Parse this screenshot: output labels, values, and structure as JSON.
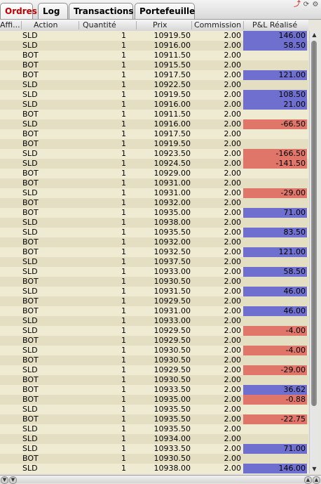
{
  "tabs": [
    {
      "label": "Ordres",
      "active": true
    },
    {
      "label": "Log",
      "active": false
    },
    {
      "label": "Transactions",
      "active": false
    },
    {
      "label": "Portefeuille",
      "active": false
    }
  ],
  "toolbar_icons": [
    "pin-icon",
    "refresh-icon",
    "settings-icon"
  ],
  "columns": {
    "aff": "Affi...",
    "action": "Action",
    "quantite": "Quantité",
    "prix": "Prix",
    "commission": "Commission",
    "pnl": "P&L Réalisé"
  },
  "colors": {
    "pnl_positive": "#6f6fcf",
    "pnl_negative": "#e0766a"
  },
  "rows": [
    {
      "action": "SLD",
      "qty": "1",
      "prix": "10919.50",
      "comm": "2.00",
      "pnl": "146.00"
    },
    {
      "action": "SLD",
      "qty": "1",
      "prix": "10916.00",
      "comm": "2.00",
      "pnl": "58.50"
    },
    {
      "action": "BOT",
      "qty": "1",
      "prix": "10911.50",
      "comm": "2.00",
      "pnl": ""
    },
    {
      "action": "BOT",
      "qty": "1",
      "prix": "10915.50",
      "comm": "2.00",
      "pnl": ""
    },
    {
      "action": "BOT",
      "qty": "1",
      "prix": "10917.50",
      "comm": "2.00",
      "pnl": "121.00"
    },
    {
      "action": "SLD",
      "qty": "1",
      "prix": "10922.50",
      "comm": "2.00",
      "pnl": ""
    },
    {
      "action": "SLD",
      "qty": "1",
      "prix": "10919.50",
      "comm": "2.00",
      "pnl": "108.50"
    },
    {
      "action": "SLD",
      "qty": "1",
      "prix": "10916.00",
      "comm": "2.00",
      "pnl": "21.00"
    },
    {
      "action": "BOT",
      "qty": "1",
      "prix": "10911.50",
      "comm": "2.00",
      "pnl": ""
    },
    {
      "action": "SLD",
      "qty": "1",
      "prix": "10916.00",
      "comm": "2.00",
      "pnl": "-66.50"
    },
    {
      "action": "BOT",
      "qty": "1",
      "prix": "10917.50",
      "comm": "2.00",
      "pnl": ""
    },
    {
      "action": "BOT",
      "qty": "1",
      "prix": "10919.50",
      "comm": "2.00",
      "pnl": ""
    },
    {
      "action": "SLD",
      "qty": "1",
      "prix": "10923.50",
      "comm": "2.00",
      "pnl": "-166.50"
    },
    {
      "action": "SLD",
      "qty": "1",
      "prix": "10924.50",
      "comm": "2.00",
      "pnl": "-141.50"
    },
    {
      "action": "BOT",
      "qty": "1",
      "prix": "10929.00",
      "comm": "2.00",
      "pnl": ""
    },
    {
      "action": "BOT",
      "qty": "1",
      "prix": "10931.00",
      "comm": "2.00",
      "pnl": ""
    },
    {
      "action": "SLD",
      "qty": "1",
      "prix": "10931.00",
      "comm": "2.00",
      "pnl": "-29.00"
    },
    {
      "action": "BOT",
      "qty": "1",
      "prix": "10932.00",
      "comm": "2.00",
      "pnl": ""
    },
    {
      "action": "BOT",
      "qty": "1",
      "prix": "10935.00",
      "comm": "2.00",
      "pnl": "71.00"
    },
    {
      "action": "SLD",
      "qty": "1",
      "prix": "10938.00",
      "comm": "2.00",
      "pnl": ""
    },
    {
      "action": "SLD",
      "qty": "1",
      "prix": "10935.50",
      "comm": "2.00",
      "pnl": "83.50"
    },
    {
      "action": "BOT",
      "qty": "1",
      "prix": "10932.00",
      "comm": "2.00",
      "pnl": ""
    },
    {
      "action": "BOT",
      "qty": "1",
      "prix": "10932.50",
      "comm": "2.00",
      "pnl": "121.00"
    },
    {
      "action": "SLD",
      "qty": "1",
      "prix": "10937.50",
      "comm": "2.00",
      "pnl": ""
    },
    {
      "action": "SLD",
      "qty": "1",
      "prix": "10933.00",
      "comm": "2.00",
      "pnl": "58.50"
    },
    {
      "action": "BOT",
      "qty": "1",
      "prix": "10930.50",
      "comm": "2.00",
      "pnl": ""
    },
    {
      "action": "SLD",
      "qty": "1",
      "prix": "10931.50",
      "comm": "2.00",
      "pnl": "46.00"
    },
    {
      "action": "BOT",
      "qty": "1",
      "prix": "10929.50",
      "comm": "2.00",
      "pnl": ""
    },
    {
      "action": "BOT",
      "qty": "1",
      "prix": "10931.00",
      "comm": "2.00",
      "pnl": "46.00"
    },
    {
      "action": "SLD",
      "qty": "1",
      "prix": "10933.00",
      "comm": "2.00",
      "pnl": ""
    },
    {
      "action": "SLD",
      "qty": "1",
      "prix": "10929.50",
      "comm": "2.00",
      "pnl": "-4.00"
    },
    {
      "action": "BOT",
      "qty": "1",
      "prix": "10929.50",
      "comm": "2.00",
      "pnl": ""
    },
    {
      "action": "SLD",
      "qty": "1",
      "prix": "10930.50",
      "comm": "2.00",
      "pnl": "-4.00"
    },
    {
      "action": "BOT",
      "qty": "1",
      "prix": "10930.50",
      "comm": "2.00",
      "pnl": ""
    },
    {
      "action": "SLD",
      "qty": "1",
      "prix": "10929.50",
      "comm": "2.00",
      "pnl": "-29.00"
    },
    {
      "action": "BOT",
      "qty": "1",
      "prix": "10930.50",
      "comm": "2.00",
      "pnl": ""
    },
    {
      "action": "BOT",
      "qty": "1",
      "prix": "10933.50",
      "comm": "2.00",
      "pnl": "36.62"
    },
    {
      "action": "BOT",
      "qty": "1",
      "prix": "10935.00",
      "comm": "2.00",
      "pnl": "-0.88"
    },
    {
      "action": "SLD",
      "qty": "1",
      "prix": "10935.50",
      "comm": "2.00",
      "pnl": ""
    },
    {
      "action": "BOT",
      "qty": "1",
      "prix": "10935.50",
      "comm": "2.00",
      "pnl": "-22.75"
    },
    {
      "action": "SLD",
      "qty": "1",
      "prix": "10935.50",
      "comm": "2.00",
      "pnl": ""
    },
    {
      "action": "SLD",
      "qty": "1",
      "prix": "10934.00",
      "comm": "2.00",
      "pnl": ""
    },
    {
      "action": "SLD",
      "qty": "1",
      "prix": "10933.50",
      "comm": "2.00",
      "pnl": "71.00"
    },
    {
      "action": "BOT",
      "qty": "1",
      "prix": "10930.50",
      "comm": "2.00",
      "pnl": ""
    },
    {
      "action": "SLD",
      "qty": "1",
      "prix": "10938.00",
      "comm": "2.00",
      "pnl": "146.00"
    }
  ]
}
